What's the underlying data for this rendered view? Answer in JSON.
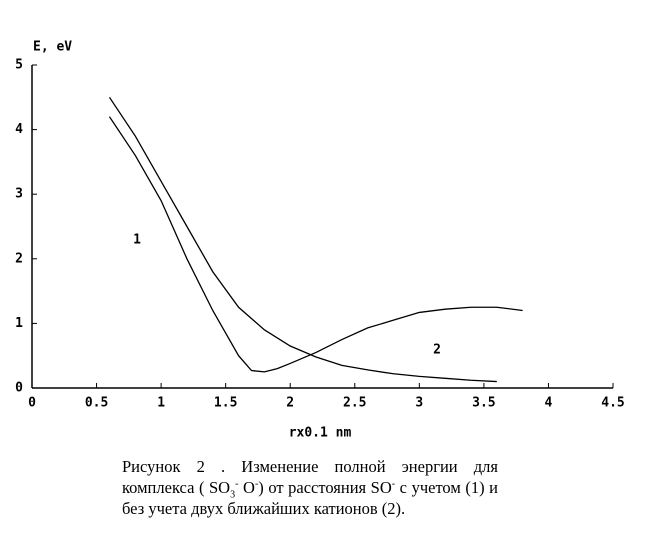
{
  "chart_data": {
    "type": "line",
    "ylabel": "E, eV",
    "xlabel": "rx0.1 nm",
    "xlim": [
      0,
      4.5
    ],
    "xticks": [
      0,
      0.5,
      1,
      1.5,
      2,
      2.5,
      3,
      3.5,
      4,
      4.5
    ],
    "ylim": [
      0,
      5
    ],
    "yticks": [
      0,
      1,
      2,
      3,
      4,
      5
    ],
    "series": [
      {
        "name": "1",
        "color": "#000000",
        "x": [
          0.6,
          0.8,
          1.0,
          1.2,
          1.4,
          1.5,
          1.6,
          1.7,
          1.8,
          1.9,
          2.0,
          2.2,
          2.4,
          2.6,
          2.8,
          3.0,
          3.2,
          3.4,
          3.6,
          3.8
        ],
        "values": [
          4.2,
          3.6,
          2.9,
          2.0,
          1.2,
          0.85,
          0.5,
          0.27,
          0.25,
          0.3,
          0.38,
          0.55,
          0.75,
          0.93,
          1.05,
          1.17,
          1.22,
          1.25,
          1.25,
          1.2
        ]
      },
      {
        "name": "2",
        "color": "#000000",
        "x": [
          0.6,
          0.8,
          1.0,
          1.2,
          1.4,
          1.6,
          1.8,
          2.0,
          2.2,
          2.4,
          2.6,
          2.8,
          3.0,
          3.2,
          3.4,
          3.6
        ],
        "values": [
          4.5,
          3.9,
          3.2,
          2.5,
          1.8,
          1.25,
          0.9,
          0.65,
          0.48,
          0.35,
          0.28,
          0.22,
          0.18,
          0.15,
          0.12,
          0.1
        ]
      }
    ]
  },
  "caption": [
    {
      "text": "Рисунок 2 . Изменение полной энергии для комплекса ( SO",
      "style": "normal"
    },
    {
      "text": "3",
      "style": "sub"
    },
    {
      "text": "-",
      "style": "sup"
    },
    {
      "text": " O",
      "style": "normal"
    },
    {
      "text": "-",
      "style": "sup"
    },
    {
      "text": ") от расстояния SO",
      "style": "normal"
    },
    {
      "text": "-",
      "style": "sup"
    },
    {
      "text": " с учетом (1) и без учета двух ближайших катионов (2).",
      "style": "normal"
    }
  ]
}
